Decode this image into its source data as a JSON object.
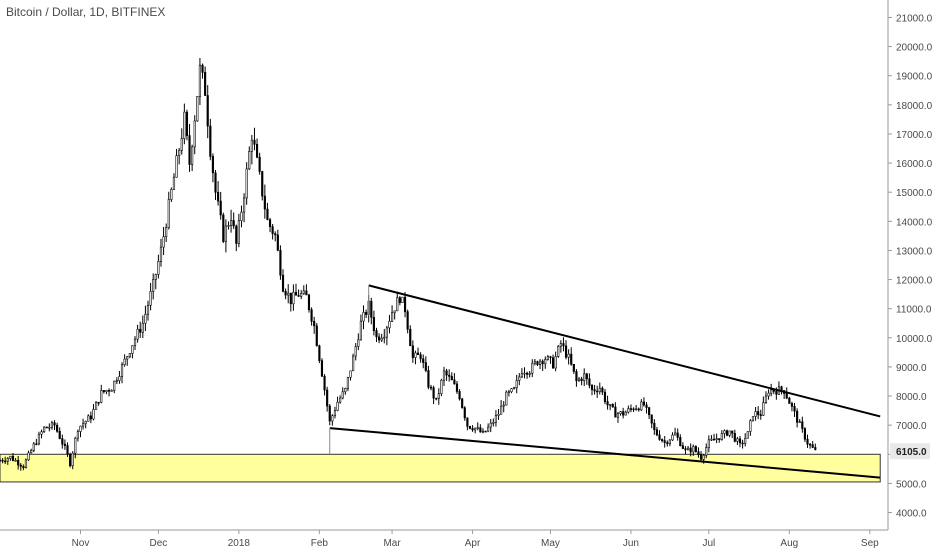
{
  "chart_data": {
    "type": "candlestick",
    "title": "Bitcoin / Dollar, 1D, BITFINEX",
    "x_tick_labels": [
      "Nov",
      "Dec",
      "2018",
      "Feb",
      "Mar",
      "Apr",
      "May",
      "Jun",
      "Jul",
      "Aug",
      "Sep"
    ],
    "x_tick_dates": [
      "2017-11-01",
      "2017-12-01",
      "2018-01-01",
      "2018-02-01",
      "2018-03-01",
      "2018-04-01",
      "2018-05-01",
      "2018-06-01",
      "2018-07-01",
      "2018-08-01",
      "2018-09-01"
    ],
    "y_tick_labels": [
      "21000.0",
      "20000.0",
      "19000.0",
      "18000.0",
      "17000.0",
      "16000.0",
      "15000.0",
      "14000.0",
      "13000.0",
      "12000.0",
      "11000.0",
      "10000.0",
      "9000.0",
      "8000.0",
      "7000.0",
      "6000.0",
      "5000.0",
      "4000.0"
    ],
    "y_tick_values": [
      21000,
      20000,
      19000,
      18000,
      17000,
      16000,
      15000,
      14000,
      13000,
      12000,
      11000,
      10000,
      9000,
      8000,
      7000,
      6000,
      5000,
      4000
    ],
    "ylim": [
      3400,
      21600
    ],
    "xlim": [
      "2017-10-01",
      "2018-09-08"
    ],
    "last_price": "6105.0",
    "price_path": [
      [
        "2017-10-01",
        5800
      ],
      [
        "2017-10-05",
        5900
      ],
      [
        "2017-10-10",
        5600
      ],
      [
        "2017-10-14",
        6300
      ],
      [
        "2017-10-18",
        6900
      ],
      [
        "2017-10-22",
        7000
      ],
      [
        "2017-10-26",
        6200
      ],
      [
        "2017-10-28",
        5700
      ],
      [
        "2017-10-31",
        6900
      ],
      [
        "2017-11-05",
        7300
      ],
      [
        "2017-11-09",
        8100
      ],
      [
        "2017-11-13",
        8300
      ],
      [
        "2017-11-17",
        9000
      ],
      [
        "2017-11-21",
        9800
      ],
      [
        "2017-11-25",
        10500
      ],
      [
        "2017-11-29",
        11800
      ],
      [
        "2017-12-02",
        13000
      ],
      [
        "2017-12-05",
        14500
      ],
      [
        "2017-12-08",
        16000
      ],
      [
        "2017-12-11",
        17500
      ],
      [
        "2017-12-13",
        16000
      ],
      [
        "2017-12-17",
        19200
      ],
      [
        "2017-12-19",
        18500
      ],
      [
        "2017-12-21",
        16500
      ],
      [
        "2017-12-23",
        15000
      ],
      [
        "2017-12-26",
        13500
      ],
      [
        "2017-12-29",
        14200
      ],
      [
        "2017-12-31",
        13200
      ],
      [
        "2018-01-03",
        15000
      ],
      [
        "2018-01-06",
        17000
      ],
      [
        "2018-01-09",
        15500
      ],
      [
        "2018-01-12",
        14000
      ],
      [
        "2018-01-15",
        13500
      ],
      [
        "2018-01-18",
        11800
      ],
      [
        "2018-01-21",
        11300
      ],
      [
        "2018-01-24",
        11500
      ],
      [
        "2018-01-27",
        11400
      ],
      [
        "2018-01-30",
        10400
      ],
      [
        "2018-02-02",
        8800
      ],
      [
        "2018-02-05",
        7100
      ],
      [
        "2018-02-08",
        7800
      ],
      [
        "2018-02-11",
        8200
      ],
      [
        "2018-02-14",
        9300
      ],
      [
        "2018-02-17",
        10500
      ],
      [
        "2018-02-20",
        11100
      ],
      [
        "2018-02-23",
        10000
      ],
      [
        "2018-02-26",
        10200
      ],
      [
        "2018-03-01",
        10900
      ],
      [
        "2018-03-04",
        11400
      ],
      [
        "2018-03-06",
        11000
      ],
      [
        "2018-03-09",
        9300
      ],
      [
        "2018-03-12",
        9400
      ],
      [
        "2018-03-15",
        8400
      ],
      [
        "2018-03-18",
        7800
      ],
      [
        "2018-03-21",
        8800
      ],
      [
        "2018-03-24",
        8500
      ],
      [
        "2018-03-27",
        8000
      ],
      [
        "2018-03-30",
        7000
      ],
      [
        "2018-04-02",
        6900
      ],
      [
        "2018-04-05",
        6700
      ],
      [
        "2018-04-08",
        7000
      ],
      [
        "2018-04-11",
        7400
      ],
      [
        "2018-04-14",
        8000
      ],
      [
        "2018-04-17",
        8200
      ],
      [
        "2018-04-20",
        8900
      ],
      [
        "2018-04-23",
        8900
      ],
      [
        "2018-04-26",
        9200
      ],
      [
        "2018-04-29",
        9300
      ],
      [
        "2018-05-02",
        9100
      ],
      [
        "2018-05-05",
        9800
      ],
      [
        "2018-05-08",
        9300
      ],
      [
        "2018-05-11",
        8500
      ],
      [
        "2018-05-14",
        8700
      ],
      [
        "2018-05-17",
        8200
      ],
      [
        "2018-05-20",
        8300
      ],
      [
        "2018-05-23",
        7700
      ],
      [
        "2018-05-26",
        7400
      ],
      [
        "2018-05-29",
        7400
      ],
      [
        "2018-06-02",
        7600
      ],
      [
        "2018-06-06",
        7700
      ],
      [
        "2018-06-10",
        6800
      ],
      [
        "2018-06-14",
        6400
      ],
      [
        "2018-06-18",
        6700
      ],
      [
        "2018-06-22",
        6100
      ],
      [
        "2018-06-25",
        6200
      ],
      [
        "2018-06-28",
        5900
      ],
      [
        "2018-07-01",
        6400
      ],
      [
        "2018-07-05",
        6600
      ],
      [
        "2018-07-09",
        6800
      ],
      [
        "2018-07-13",
        6300
      ],
      [
        "2018-07-16",
        6700
      ],
      [
        "2018-07-18",
        7400
      ],
      [
        "2018-07-21",
        7400
      ],
      [
        "2018-07-24",
        8200
      ],
      [
        "2018-07-27",
        8200
      ],
      [
        "2018-07-30",
        8200
      ],
      [
        "2018-08-02",
        7600
      ],
      [
        "2018-08-05",
        7000
      ],
      [
        "2018-08-08",
        6400
      ],
      [
        "2018-08-11",
        6100
      ]
    ],
    "annotations": {
      "upper_trendline": [
        [
          "2018-02-20",
          11800
        ],
        [
          "2018-09-05",
          7300
        ]
      ],
      "lower_trendline": [
        [
          "2018-02-05",
          6900
        ],
        [
          "2018-09-05",
          5200
        ]
      ],
      "support_zone": {
        "date_from": "2017-10-01",
        "date_to": "2018-09-05",
        "low": 5050,
        "high": 6000
      }
    },
    "colors": {
      "candle_up": "#ffffff",
      "candle_down": "#000000",
      "wick": "#000000",
      "support_fill": "#ffff9e",
      "support_border": "#333333",
      "trendline": "#000000",
      "axis_text": "#4a4a4a",
      "price_label_bg": "#e8e8e8"
    },
    "grid": false,
    "legend": "none"
  }
}
